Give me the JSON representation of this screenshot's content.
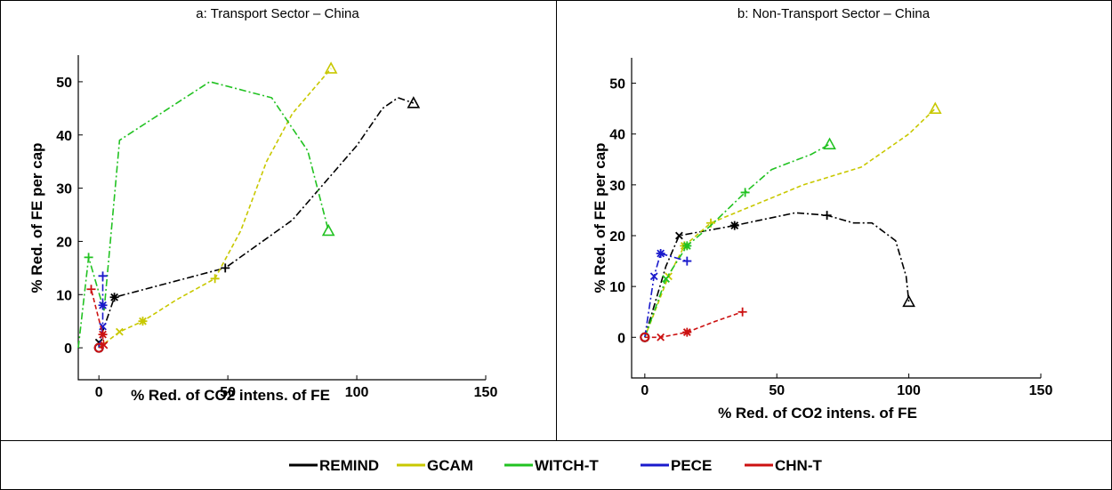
{
  "chart_data": [
    {
      "type": "line",
      "title": "a: Transport Sector – China",
      "xlabel": "% Red. of CO2 intens. of FE",
      "ylabel": "% Red. of FE per cap",
      "xlim": [
        -8,
        150
      ],
      "ylim": [
        -6,
        55
      ],
      "xticks": [
        0,
        50,
        100,
        150
      ],
      "yticks": [
        0,
        10,
        20,
        30,
        40,
        50
      ],
      "series": [
        {
          "name": "REMIND",
          "color": "#000000",
          "dash": "8,3,2,3",
          "x": [
            0,
            0,
            6,
            49,
            75,
            100,
            110,
            116,
            122
          ],
          "y": [
            0,
            1,
            9.5,
            15,
            24,
            38,
            45,
            47,
            46
          ],
          "markers": [
            {
              "i": 0,
              "m": "circle"
            },
            {
              "i": 1,
              "m": "cross"
            },
            {
              "i": 2,
              "m": "star"
            },
            {
              "i": 3,
              "m": "plus"
            },
            {
              "i": 8,
              "m": "triangle"
            }
          ]
        },
        {
          "name": "GCAM",
          "color": "#c8c800",
          "dash": "5,3",
          "x": [
            0,
            8,
            17,
            30,
            45,
            55,
            65,
            75,
            90
          ],
          "y": [
            0,
            3,
            5,
            9,
            13,
            22,
            35,
            44,
            52.5
          ],
          "markers": [
            {
              "i": 0,
              "m": "circle"
            },
            {
              "i": 1,
              "m": "cross"
            },
            {
              "i": 2,
              "m": "star"
            },
            {
              "i": 4,
              "m": "plus"
            },
            {
              "i": 8,
              "m": "triangle"
            }
          ]
        },
        {
          "name": "WITCH-T",
          "color": "#22c222",
          "dash": "8,3,2,3",
          "x": [
            -8,
            -4,
            2,
            8,
            43,
            67,
            81,
            89
          ],
          "y": [
            0,
            17,
            7,
            39,
            50,
            47,
            37,
            22
          ],
          "markers": [
            {
              "i": 1,
              "m": "plus"
            },
            {
              "i": 7,
              "m": "triangle"
            }
          ]
        },
        {
          "name": "PECE",
          "color": "#1a1acc",
          "dash": "8,3,2,3",
          "x": [
            0,
            1.5,
            1.5,
            1.5
          ],
          "y": [
            0,
            4,
            8,
            13.5
          ],
          "markers": [
            {
              "i": 0,
              "m": "circle"
            },
            {
              "i": 1,
              "m": "cross"
            },
            {
              "i": 2,
              "m": "star"
            },
            {
              "i": 3,
              "m": "plus"
            }
          ]
        },
        {
          "name": "CHN-T",
          "color": "#cc1111",
          "dash": "5,3",
          "x": [
            0,
            2,
            1.5,
            -3
          ],
          "y": [
            0,
            0.5,
            2.5,
            11
          ],
          "markers": [
            {
              "i": 0,
              "m": "circle"
            },
            {
              "i": 1,
              "m": "cross"
            },
            {
              "i": 2,
              "m": "star"
            },
            {
              "i": 3,
              "m": "plus"
            }
          ]
        }
      ]
    },
    {
      "type": "line",
      "title": "b: Non-Transport Sector – China",
      "xlabel": "% Red. of CO2 intens. of FE",
      "ylabel": "% Red. of FE per cap",
      "xlim": [
        -5,
        150
      ],
      "ylim": [
        -8,
        55
      ],
      "xticks": [
        0,
        50,
        100,
        150
      ],
      "yticks": [
        0,
        10,
        20,
        30,
        40,
        50
      ],
      "series": [
        {
          "name": "REMIND",
          "color": "#000000",
          "dash": "8,3,2,3",
          "x": [
            0,
            8,
            13,
            34,
            57,
            69,
            79,
            86,
            95,
            99,
            100
          ],
          "y": [
            0,
            14,
            20,
            22,
            24.5,
            24,
            22.5,
            22.5,
            19,
            12,
            7
          ],
          "markers": [
            {
              "i": 0,
              "m": "circle"
            },
            {
              "i": 2,
              "m": "cross"
            },
            {
              "i": 3,
              "m": "star"
            },
            {
              "i": 5,
              "m": "plus"
            },
            {
              "i": 10,
              "m": "triangle"
            }
          ]
        },
        {
          "name": "GCAM",
          "color": "#c8c800",
          "dash": "5,3",
          "x": [
            0,
            9,
            15,
            25,
            60,
            82,
            100,
            110
          ],
          "y": [
            0,
            12,
            18,
            22.5,
            30,
            33.5,
            40,
            45
          ],
          "markers": [
            {
              "i": 0,
              "m": "circle"
            },
            {
              "i": 1,
              "m": "cross"
            },
            {
              "i": 2,
              "m": "star"
            },
            {
              "i": 3,
              "m": "plus"
            },
            {
              "i": 7,
              "m": "triangle"
            }
          ]
        },
        {
          "name": "WITCH-T",
          "color": "#22c222",
          "dash": "8,3,2,3",
          "x": [
            0,
            8,
            16,
            25,
            38,
            48,
            63,
            70
          ],
          "y": [
            0,
            11.5,
            18,
            22,
            28.5,
            33,
            36,
            38
          ],
          "markers": [
            {
              "i": 0,
              "m": "circle"
            },
            {
              "i": 1,
              "m": "cross"
            },
            {
              "i": 2,
              "m": "star"
            },
            {
              "i": 4,
              "m": "plus"
            },
            {
              "i": 7,
              "m": "triangle"
            }
          ]
        },
        {
          "name": "PECE",
          "color": "#1a1acc",
          "dash": "8,3,2,3",
          "x": [
            0,
            3.5,
            6,
            16
          ],
          "y": [
            0,
            12,
            16.5,
            15
          ],
          "markers": [
            {
              "i": 0,
              "m": "circle"
            },
            {
              "i": 1,
              "m": "cross"
            },
            {
              "i": 2,
              "m": "star"
            },
            {
              "i": 3,
              "m": "plus"
            }
          ]
        },
        {
          "name": "CHN-T",
          "color": "#cc1111",
          "dash": "5,3",
          "x": [
            0,
            6,
            16,
            26,
            37
          ],
          "y": [
            0,
            0,
            1,
            3,
            5
          ],
          "markers": [
            {
              "i": 0,
              "m": "circle"
            },
            {
              "i": 1,
              "m": "cross"
            },
            {
              "i": 2,
              "m": "star"
            },
            {
              "i": 4,
              "m": "plus"
            }
          ]
        }
      ]
    }
  ],
  "legend": {
    "placement": "bottom",
    "items": [
      {
        "label": "REMIND",
        "color": "#000000"
      },
      {
        "label": "GCAM",
        "color": "#c8c800"
      },
      {
        "label": "WITCH-T",
        "color": "#22c222"
      },
      {
        "label": "PECE",
        "color": "#1a1acc"
      },
      {
        "label": "CHN-T",
        "color": "#cc1111"
      }
    ]
  }
}
